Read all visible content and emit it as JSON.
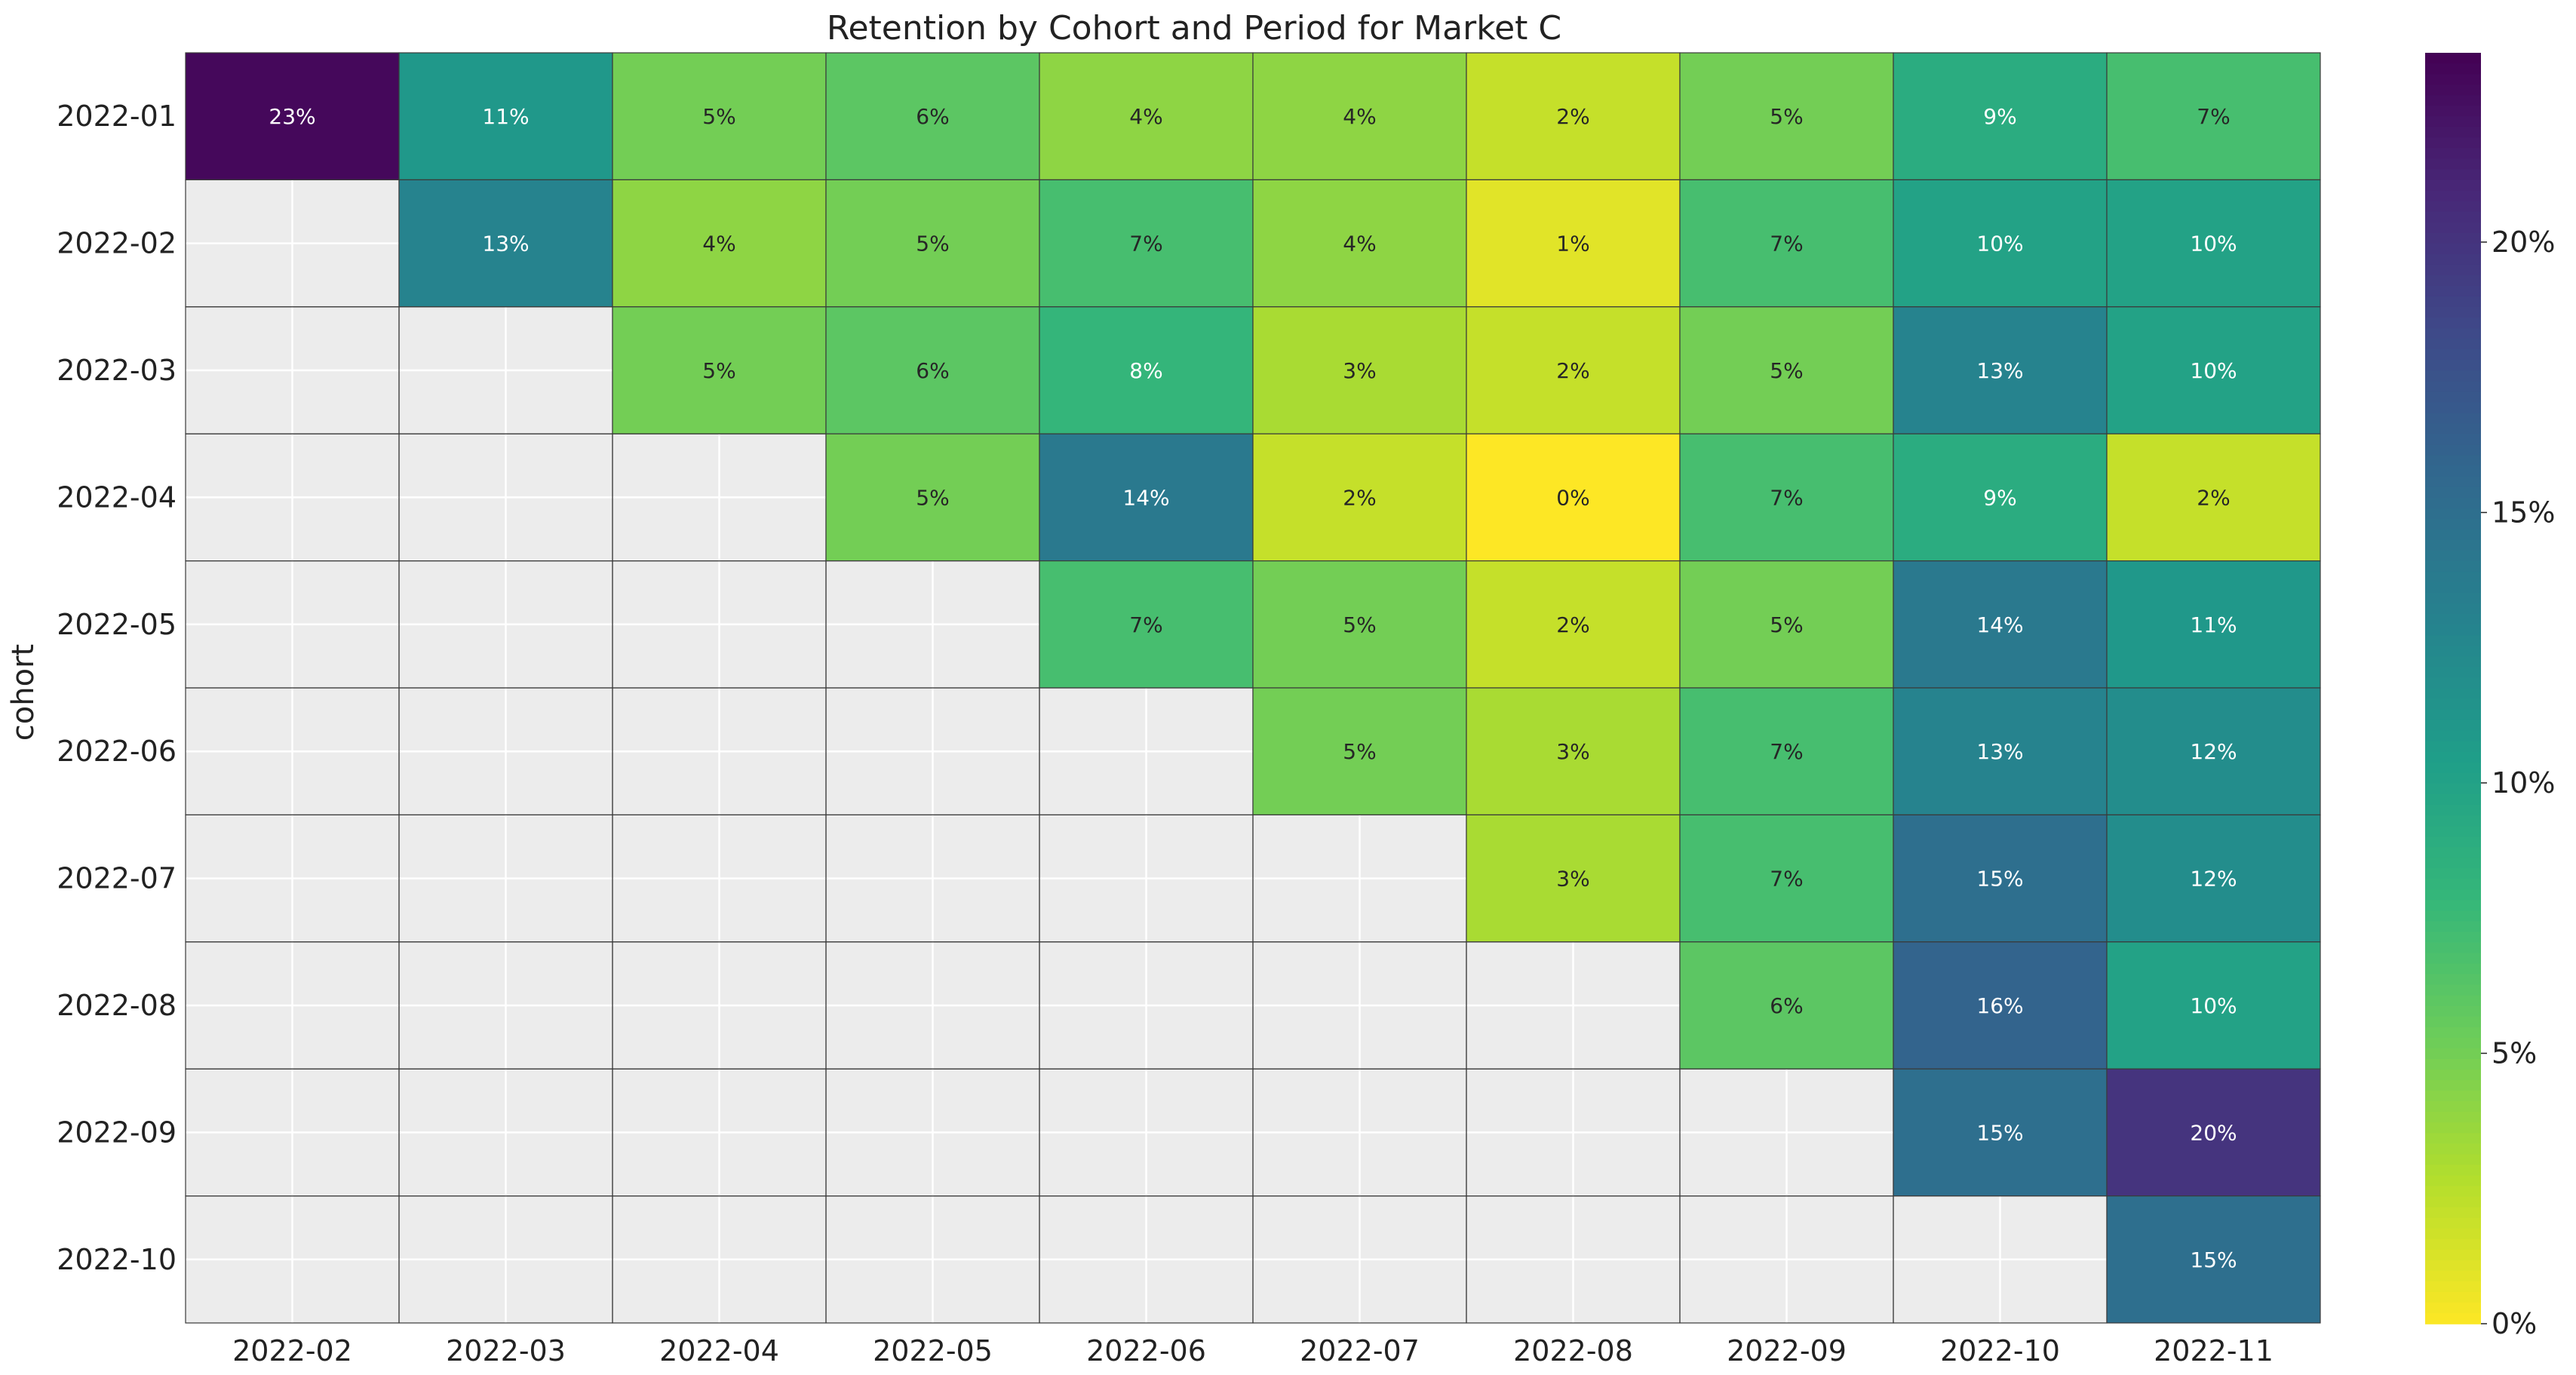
{
  "chart_data": {
    "type": "heatmap",
    "title": "Retention by Cohort and Period for Market C",
    "xlabel": "",
    "ylabel": "cohort",
    "x_categories": [
      "2022-02",
      "2022-03",
      "2022-04",
      "2022-05",
      "2022-06",
      "2022-07",
      "2022-08",
      "2022-09",
      "2022-10",
      "2022-11"
    ],
    "y_categories": [
      "2022-01",
      "2022-02",
      "2022-03",
      "2022-04",
      "2022-05",
      "2022-06",
      "2022-07",
      "2022-08",
      "2022-09",
      "2022-10"
    ],
    "values": [
      [
        23,
        11,
        5,
        6,
        4,
        4,
        2,
        5,
        9,
        7
      ],
      [
        null,
        13,
        4,
        5,
        7,
        4,
        1,
        7,
        10,
        10
      ],
      [
        null,
        null,
        5,
        6,
        8,
        3,
        2,
        5,
        13,
        10
      ],
      [
        null,
        null,
        null,
        5,
        14,
        2,
        0,
        7,
        9,
        2
      ],
      [
        null,
        null,
        null,
        null,
        7,
        5,
        2,
        5,
        14,
        11
      ],
      [
        null,
        null,
        null,
        null,
        null,
        5,
        3,
        7,
        13,
        12
      ],
      [
        null,
        null,
        null,
        null,
        null,
        null,
        3,
        7,
        15,
        12
      ],
      [
        null,
        null,
        null,
        null,
        null,
        null,
        null,
        6,
        16,
        10
      ],
      [
        null,
        null,
        null,
        null,
        null,
        null,
        null,
        null,
        15,
        20
      ],
      [
        null,
        null,
        null,
        null,
        null,
        null,
        null,
        null,
        null,
        15
      ]
    ],
    "value_format": "percent",
    "colormap": "viridis_r",
    "colorbar": {
      "vmin": 0,
      "vmax": 23.5,
      "ticks": [
        0,
        5,
        10,
        15,
        20
      ],
      "tick_labels": [
        "0%",
        "5%",
        "10%",
        "15%",
        "20%"
      ],
      "position": "right"
    },
    "grid": true,
    "missing_color": "#ececec"
  }
}
